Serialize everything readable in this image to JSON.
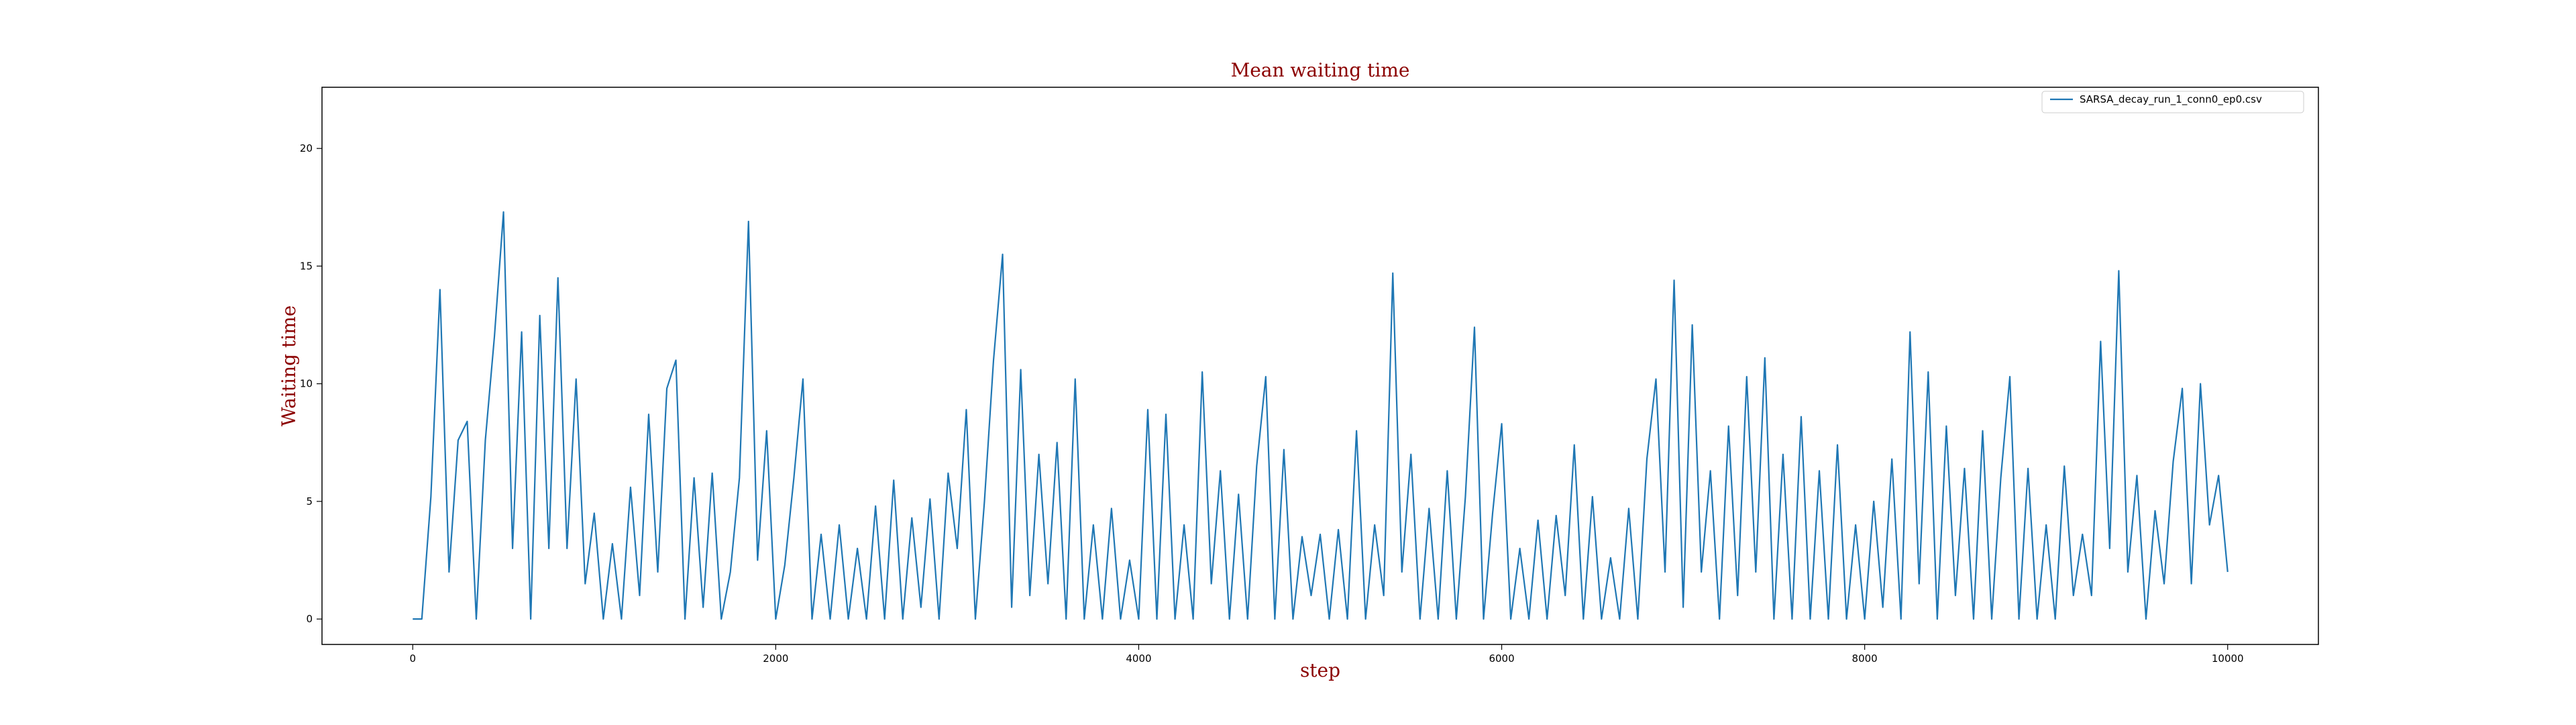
{
  "chart_data": {
    "type": "line",
    "title": "Mean waiting time",
    "x_label": "step",
    "y_label": "Waiting time",
    "x": [
      0,
      50,
      100,
      150,
      200,
      250,
      300,
      350,
      400,
      450,
      500,
      550,
      600,
      650,
      700,
      750,
      800,
      850,
      900,
      950,
      1000,
      1050,
      1100,
      1150,
      1200,
      1250,
      1300,
      1350,
      1400,
      1450,
      1500,
      1550,
      1600,
      1650,
      1700,
      1750,
      1800,
      1850,
      1900,
      1950,
      2000,
      2050,
      2100,
      2150,
      2200,
      2250,
      2300,
      2350,
      2400,
      2450,
      2500,
      2550,
      2600,
      2650,
      2700,
      2750,
      2800,
      2850,
      2900,
      2950,
      3000,
      3050,
      3100,
      3150,
      3200,
      3250,
      3300,
      3350,
      3400,
      3450,
      3500,
      3550,
      3600,
      3650,
      3700,
      3750,
      3800,
      3850,
      3900,
      3950,
      4000,
      4050,
      4100,
      4150,
      4200,
      4250,
      4300,
      4350,
      4400,
      4450,
      4500,
      4550,
      4600,
      4650,
      4700,
      4750,
      4800,
      4850,
      4900,
      4950,
      5000,
      5050,
      5100,
      5150,
      5200,
      5250,
      5300,
      5350,
      5400,
      5450,
      5500,
      5550,
      5600,
      5650,
      5700,
      5750,
      5800,
      5850,
      5900,
      5950,
      6000,
      6050,
      6100,
      6150,
      6200,
      6250,
      6300,
      6350,
      6400,
      6450,
      6500,
      6550,
      6600,
      6650,
      6700,
      6750,
      6800,
      6850,
      6900,
      6950,
      7000,
      7050,
      7100,
      7150,
      7200,
      7250,
      7300,
      7350,
      7400,
      7450,
      7500,
      7550,
      7600,
      7650,
      7700,
      7750,
      7800,
      7850,
      7900,
      7950,
      8000,
      8050,
      8100,
      8150,
      8200,
      8250,
      8300,
      8350,
      8400,
      8450,
      8500,
      8550,
      8600,
      8650,
      8700,
      8750,
      8800,
      8850,
      8900,
      8950,
      9000,
      9050,
      9100,
      9150,
      9200,
      9250,
      9300,
      9350,
      9400,
      9450,
      9500,
      9550,
      9600,
      9650,
      9700,
      9750,
      9800,
      9850,
      9900,
      9950,
      10000
    ],
    "series": [
      {
        "name": "SARSA_decay_run_1_conn0_ep0.csv",
        "color": "#1f77b4",
        "values": [
          0,
          0,
          5.2,
          14,
          2,
          7.6,
          8.4,
          0,
          7.6,
          12,
          17.3,
          3,
          12.2,
          0,
          12.9,
          3,
          14.5,
          3,
          10.2,
          1.5,
          4.5,
          0,
          3.2,
          0,
          5.6,
          1,
          8.7,
          2,
          9.8,
          11,
          0,
          6,
          0.5,
          6.2,
          0,
          2,
          6,
          16.9,
          2.5,
          8,
          0,
          2.3,
          6,
          10.2,
          0,
          3.6,
          0,
          4,
          0,
          3,
          0,
          4.8,
          0,
          5.9,
          0,
          4.3,
          0.5,
          5.1,
          0,
          6.2,
          3,
          8.9,
          0,
          5,
          11,
          15.5,
          0.5,
          10.6,
          1,
          7,
          1.5,
          7.5,
          0,
          10.2,
          0,
          4,
          0,
          4.7,
          0,
          2.5,
          0,
          8.9,
          0,
          8.7,
          0,
          4,
          0,
          10.5,
          1.5,
          6.3,
          0,
          5.3,
          0,
          6.5,
          10.3,
          0,
          7.2,
          0,
          3.5,
          1,
          3.6,
          0,
          3.8,
          0,
          8,
          0,
          4,
          1,
          14.7,
          2,
          7,
          0,
          4.7,
          0,
          6.3,
          0,
          5.2,
          12.4,
          0,
          4.5,
          8.3,
          0,
          3,
          0,
          4.2,
          0,
          4.4,
          1,
          7.4,
          0,
          5.2,
          0,
          2.6,
          0,
          4.7,
          0,
          6.8,
          10.2,
          2,
          14.4,
          0.5,
          12.5,
          2,
          6.3,
          0,
          8.2,
          1,
          10.3,
          2,
          11.1,
          0,
          7,
          0,
          8.6,
          0,
          6.3,
          0,
          7.4,
          0,
          4,
          0,
          5,
          0.5,
          6.8,
          0,
          12.2,
          1.5,
          10.5,
          0,
          8.2,
          1,
          6.4,
          0,
          8,
          0,
          6,
          10.3,
          0,
          6.4,
          0,
          4,
          0,
          6.5,
          1,
          3.6,
          1,
          11.8,
          3,
          14.8,
          2,
          6.1,
          0,
          4.6,
          1.5,
          6.7,
          9.8,
          1.5,
          10,
          4,
          6.1,
          2
        ]
      }
    ],
    "xlim": [
      -500,
      10500
    ],
    "ylim": [
      -1.08,
      22.6
    ],
    "xticks": [
      0,
      2000,
      4000,
      6000,
      8000,
      10000
    ],
    "yticks": [
      0,
      5,
      10,
      15,
      20
    ],
    "legend": "upper right"
  }
}
